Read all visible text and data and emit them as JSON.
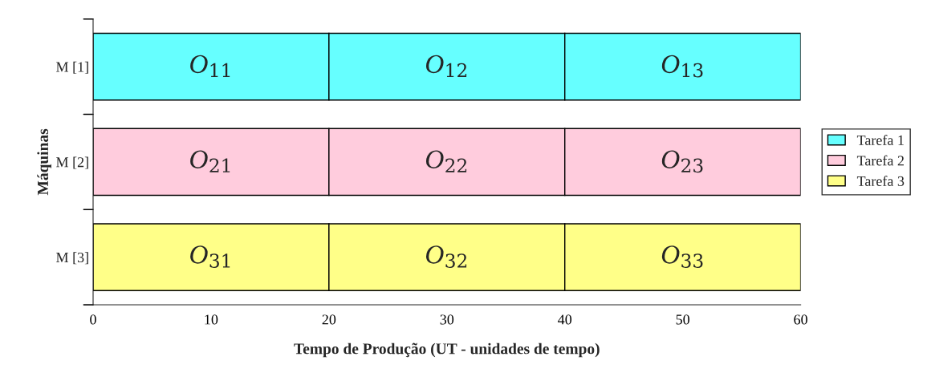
{
  "chart_data": {
    "type": "bar",
    "orientation": "horizontal",
    "stacked": true,
    "categories": [
      "M [1]",
      "M [2]",
      "M [3]"
    ],
    "xlabel": "Tempo de Produção (UT - unidades de tempo)",
    "ylabel": "Máquinas",
    "xlim": [
      0,
      60
    ],
    "xticks": [
      0,
      10,
      20,
      30,
      40,
      50,
      60
    ],
    "grid": false,
    "legend": "right",
    "series": [
      {
        "name": "Tarefa 1",
        "color": "#66ffff",
        "values": [
          20,
          null,
          null
        ]
      },
      {
        "color": "#66ffff",
        "values": [
          20,
          null,
          null
        ]
      },
      {
        "color": "#66ffff",
        "values": [
          20,
          null,
          null
        ]
      },
      {
        "name": "Tarefa 2",
        "color": "#ffccdd",
        "values": [
          null,
          20,
          null
        ]
      },
      {
        "color": "#ffccdd",
        "values": [
          null,
          20,
          null
        ]
      },
      {
        "color": "#ffccdd",
        "values": [
          null,
          20,
          null
        ]
      },
      {
        "name": "Tarefa 3",
        "color": "#ffff88",
        "values": [
          null,
          null,
          20
        ]
      },
      {
        "color": "#ffff88",
        "values": [
          null,
          null,
          20
        ]
      },
      {
        "color": "#ffff88",
        "values": [
          null,
          null,
          20
        ]
      }
    ],
    "annotations": [
      "O$_{11}$",
      "O$_{12}$",
      "O$_{13}$",
      "O$_{21}$",
      "O$_{22}$",
      "O$_{23}$",
      "O$_{31}$",
      "O$_{32}$",
      "O$_{33}$"
    ]
  }
}
